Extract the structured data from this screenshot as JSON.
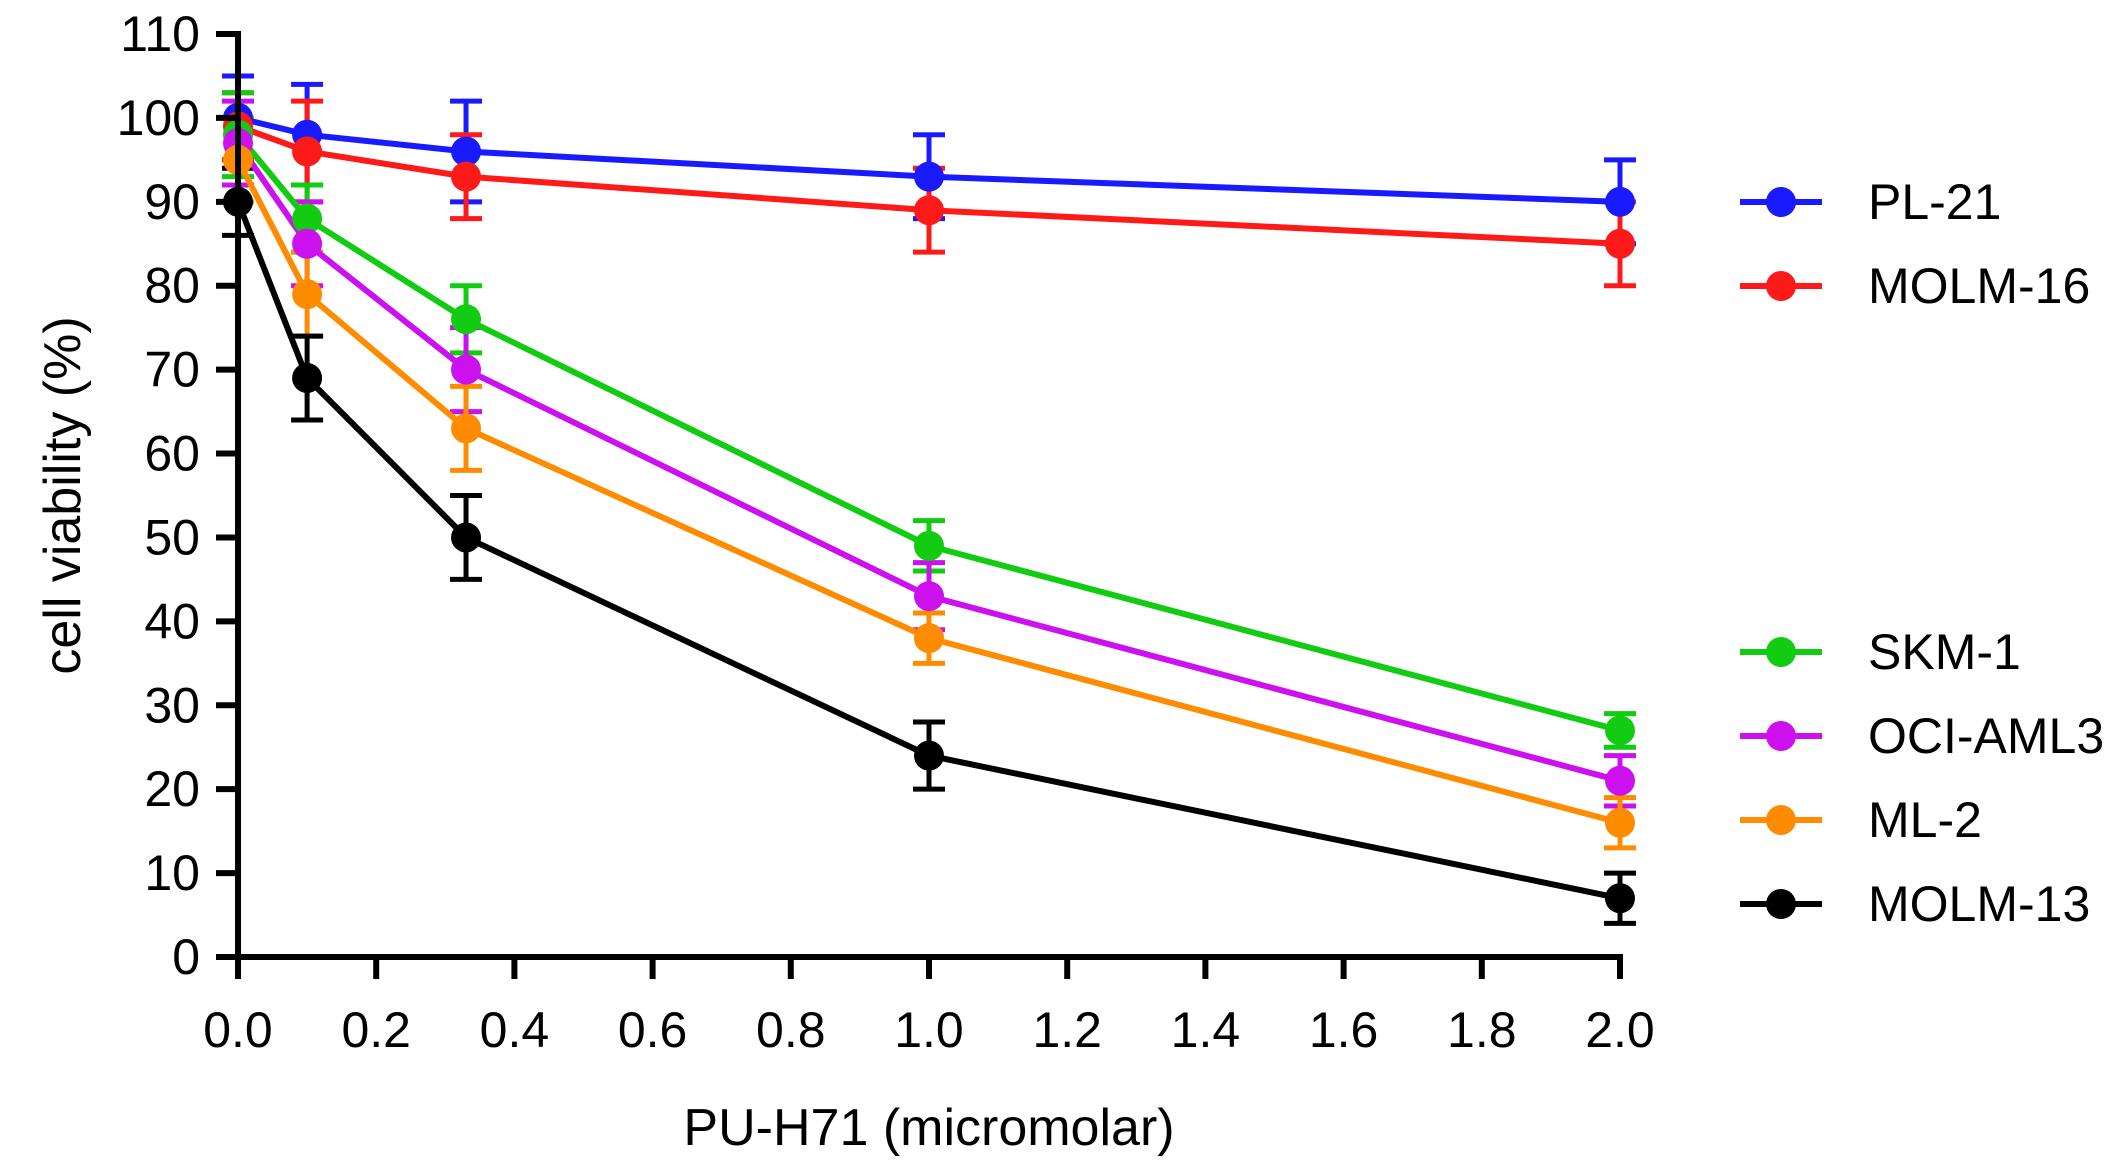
{
  "chart_data": {
    "type": "line",
    "title": "",
    "xlabel": "PU-H71 (micromolar)",
    "ylabel": "cell viability (%)",
    "xlim": [
      0,
      2.0
    ],
    "ylim": [
      0,
      110
    ],
    "xticks": [
      0.0,
      0.2,
      0.4,
      0.6,
      0.8,
      1.0,
      1.2,
      1.4,
      1.6,
      1.8,
      2.0
    ],
    "xtick_labels": [
      "0.0",
      "0.2",
      "0.4",
      "0.6",
      "0.8",
      "1.0",
      "1.2",
      "1.4",
      "1.6",
      "1.8",
      "2.0"
    ],
    "yticks": [
      0,
      10,
      20,
      30,
      40,
      50,
      60,
      70,
      80,
      90,
      100,
      110
    ],
    "ytick_labels": [
      "0",
      "10",
      "20",
      "30",
      "40",
      "50",
      "60",
      "70",
      "80",
      "90",
      "100",
      "110"
    ],
    "x": [
      0.0,
      0.1,
      0.33,
      1.0,
      2.0
    ],
    "grid": false,
    "legend_position": "right",
    "series": [
      {
        "name": "PL-21",
        "color": "#1a1aff",
        "values": [
          100,
          98,
          96,
          93,
          90
        ],
        "errors": [
          5,
          6,
          6,
          5,
          5
        ]
      },
      {
        "name": "MOLM-16",
        "color": "#ff1a1a",
        "values": [
          99,
          96,
          93,
          89,
          85
        ],
        "errors": [
          4,
          6,
          5,
          5,
          5
        ]
      },
      {
        "name": "SKM-1",
        "color": "#11cc11",
        "values": [
          98,
          88,
          76,
          49,
          27
        ],
        "errors": [
          5,
          4,
          4,
          3,
          2
        ]
      },
      {
        "name": "OCI-AML3",
        "color": "#cc11ee",
        "values": [
          97,
          85,
          70,
          43,
          21
        ],
        "errors": [
          5,
          5,
          5,
          4,
          3
        ]
      },
      {
        "name": "ML-2",
        "color": "#ff8c00",
        "values": [
          95,
          79,
          63,
          38,
          16
        ],
        "errors": [
          5,
          5,
          5,
          3,
          3
        ]
      },
      {
        "name": "MOLM-13",
        "color": "#000000",
        "values": [
          90,
          69,
          50,
          24,
          7
        ],
        "errors": [
          4,
          5,
          5,
          4,
          3
        ]
      }
    ],
    "legend_groups": [
      [
        "PL-21",
        "MOLM-16"
      ],
      [
        "SKM-1",
        "OCI-AML3",
        "ML-2",
        "MOLM-13"
      ]
    ]
  }
}
